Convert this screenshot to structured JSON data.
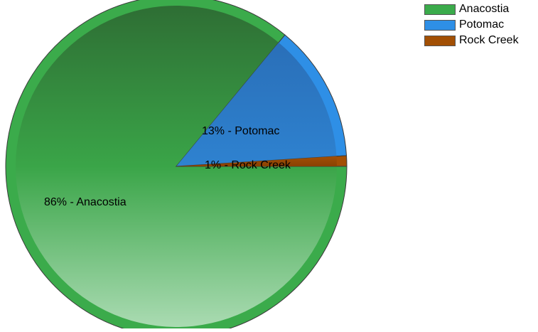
{
  "chart_data": {
    "type": "pie",
    "slices": [
      {
        "name": "Anacostia",
        "percent": 86,
        "label": "86% - Anacostia",
        "color": "#3bab4b"
      },
      {
        "name": "Potomac",
        "percent": 13,
        "label": "13% - Potomac",
        "color": "#2e8fe6"
      },
      {
        "name": "Rock Creek",
        "percent": 1,
        "label": "1% - Rock Creek",
        "color": "#a24f04"
      }
    ],
    "legend": {
      "position": "top-right",
      "items": [
        {
          "label": "Anacostia",
          "color": "#3bab4b"
        },
        {
          "label": "Potomac",
          "color": "#2e8fe6"
        },
        {
          "label": "Rock Creek",
          "color": "#a24f04"
        }
      ]
    }
  }
}
